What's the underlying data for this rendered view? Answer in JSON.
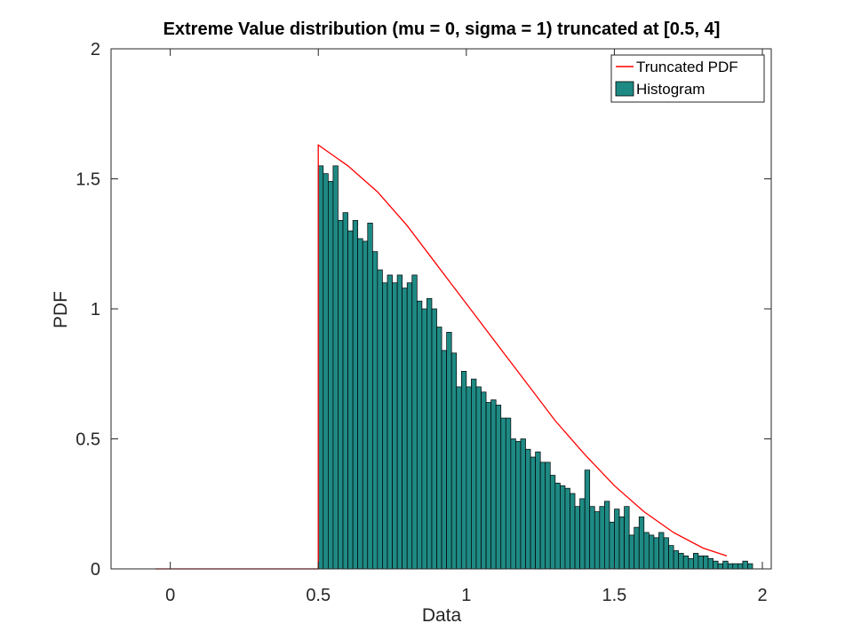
{
  "chart_data": {
    "type": "bar",
    "title": "Extreme Value distribution (mu = 0, sigma = 1) truncated at [0.5, 4]",
    "xlabel": "Data",
    "ylabel": "PDF",
    "xlim": [
      -0.2,
      2.03
    ],
    "ylim": [
      0,
      2
    ],
    "x_ticks": [
      0,
      0.5,
      1,
      1.5,
      2
    ],
    "x_tick_labels": [
      "0",
      "0.5",
      "1",
      "1.5",
      "2"
    ],
    "y_ticks": [
      0,
      0.5,
      1,
      1.5,
      2
    ],
    "y_tick_labels": [
      "0",
      "0.5",
      "1",
      "1.5",
      "2"
    ],
    "grid": false,
    "legend_position": "top-right",
    "legend": [
      "Truncated PDF",
      "Histogram"
    ],
    "colors": {
      "pdf": "#ff0000",
      "histogram": "#1f8a84",
      "bar_edge": "#000000",
      "axes": "#262626"
    },
    "series": [
      {
        "name": "Histogram",
        "type": "bar",
        "bin_start": 0.5,
        "bin_width": 0.01667,
        "values": [
          1.55,
          1.52,
          1.49,
          1.55,
          1.34,
          1.37,
          1.3,
          1.34,
          1.27,
          1.26,
          1.33,
          1.22,
          1.15,
          1.1,
          1.13,
          1.1,
          1.13,
          1.08,
          1.1,
          1.13,
          1.03,
          1.0,
          1.04,
          1.0,
          0.93,
          0.84,
          0.91,
          0.83,
          0.7,
          0.76,
          0.7,
          0.73,
          0.7,
          0.68,
          0.64,
          0.65,
          0.63,
          0.58,
          0.58,
          0.5,
          0.49,
          0.5,
          0.46,
          0.43,
          0.45,
          0.41,
          0.41,
          0.36,
          0.33,
          0.32,
          0.31,
          0.29,
          0.24,
          0.27,
          0.38,
          0.24,
          0.22,
          0.24,
          0.26,
          0.18,
          0.23,
          0.2,
          0.24,
          0.13,
          0.16,
          0.2,
          0.14,
          0.13,
          0.12,
          0.14,
          0.12,
          0.09,
          0.07,
          0.06,
          0.05,
          0.04,
          0.06,
          0.05,
          0.05,
          0.04,
          0.03,
          0.02,
          0.03,
          0.02,
          0.02,
          0.02,
          0.03,
          0.02
        ]
      },
      {
        "name": "Truncated PDF",
        "type": "line",
        "x_start": -0.05,
        "x_end": 1.88,
        "points": [
          [
            0.5,
            1.63
          ],
          [
            0.6,
            1.55
          ],
          [
            0.7,
            1.45
          ],
          [
            0.8,
            1.32
          ],
          [
            0.9,
            1.17
          ],
          [
            1.0,
            1.02
          ],
          [
            1.1,
            0.87
          ],
          [
            1.2,
            0.72
          ],
          [
            1.3,
            0.57
          ],
          [
            1.4,
            0.44
          ],
          [
            1.5,
            0.32
          ],
          [
            1.6,
            0.22
          ],
          [
            1.7,
            0.14
          ],
          [
            1.8,
            0.08
          ],
          [
            1.88,
            0.05
          ]
        ]
      }
    ]
  }
}
